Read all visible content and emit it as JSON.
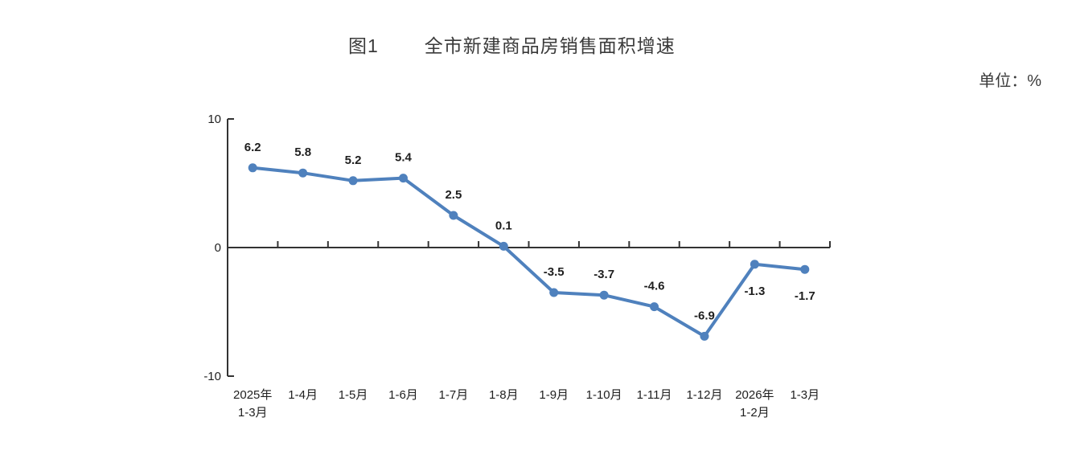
{
  "title": {
    "prefix": "图1",
    "text": "全市新建商品房销售面积增速"
  },
  "unit_label": "单位：%",
  "chart_data": {
    "type": "line",
    "title": "图1 全市新建商品房销售面积增速",
    "unit": "%",
    "categories": [
      [
        "2025年",
        "1-3月"
      ],
      [
        "1-4月"
      ],
      [
        "1-5月"
      ],
      [
        "1-6月"
      ],
      [
        "1-7月"
      ],
      [
        "1-8月"
      ],
      [
        "1-9月"
      ],
      [
        "1-10月"
      ],
      [
        "1-11月"
      ],
      [
        "1-12月"
      ],
      [
        "2026年",
        "1-2月"
      ],
      [
        "1-3月"
      ]
    ],
    "values": [
      6.2,
      5.8,
      5.2,
      5.4,
      2.5,
      0.1,
      -3.5,
      -3.7,
      -4.6,
      -6.9,
      -1.3,
      -1.7
    ],
    "labels": [
      "6.2",
      "5.8",
      "5.2",
      "5.4",
      "2.5",
      "0.1",
      "-3.5",
      "-3.7",
      "-4.6",
      "-6.9",
      "-1.3",
      "-1.7"
    ],
    "label_below_indices": [
      10,
      11
    ],
    "ylim": [
      -10,
      10
    ],
    "yticks": [
      10,
      0,
      -10
    ],
    "grid": false,
    "legend": "none",
    "line_color": "#4f81bd",
    "axis_color": "#333333"
  }
}
